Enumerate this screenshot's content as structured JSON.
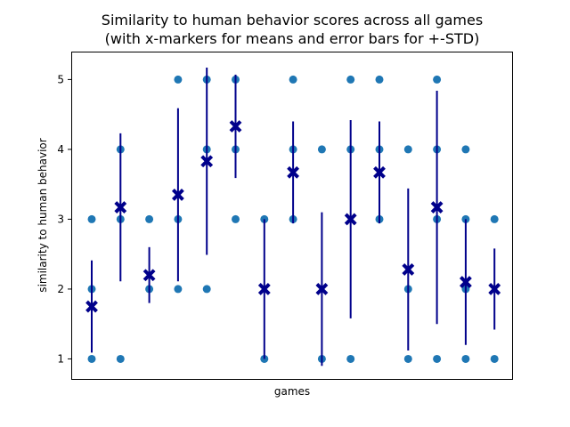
{
  "chart_data": {
    "type": "scatter",
    "title_line1": "Similarity to human behavior scores across all games",
    "title_line2": "(with x-markers for means and error bars for +-STD)",
    "xlabel": "games",
    "ylabel": "similarity to human behavior",
    "ylim": [
      0.7,
      5.4
    ],
    "yticks": [
      1,
      2,
      3,
      4,
      5
    ],
    "grid": false,
    "point_color": "#1f77b4",
    "mean_color": "#00008b",
    "games": [
      {
        "points": [
          1,
          2,
          3
        ],
        "mean": 1.75,
        "std": 0.66
      },
      {
        "points": [
          1,
          3,
          4
        ],
        "mean": 3.17,
        "std": 1.06
      },
      {
        "points": [
          2,
          3
        ],
        "mean": 2.2,
        "std": 0.4
      },
      {
        "points": [
          2,
          3,
          5
        ],
        "mean": 3.35,
        "std": 1.24
      },
      {
        "points": [
          2,
          4,
          5
        ],
        "mean": 3.83,
        "std": 1.34
      },
      {
        "points": [
          3,
          4,
          5
        ],
        "mean": 4.33,
        "std": 0.74
      },
      {
        "points": [
          1,
          3
        ],
        "mean": 2.0,
        "std": 1.0
      },
      {
        "points": [
          3,
          4,
          5
        ],
        "mean": 3.67,
        "std": 0.73
      },
      {
        "points": [
          1,
          4
        ],
        "mean": 2.0,
        "std": 1.1
      },
      {
        "points": [
          1,
          4,
          5
        ],
        "mean": 3.0,
        "std": 1.42
      },
      {
        "points": [
          3,
          4,
          5
        ],
        "mean": 3.67,
        "std": 0.73
      },
      {
        "points": [
          1,
          2,
          4
        ],
        "mean": 2.28,
        "std": 1.16
      },
      {
        "points": [
          1,
          3,
          4,
          5
        ],
        "mean": 3.17,
        "std": 1.67
      },
      {
        "points": [
          1,
          2,
          3,
          4
        ],
        "mean": 2.1,
        "std": 0.9
      },
      {
        "points": [
          1,
          3
        ],
        "mean": 2.0,
        "std": 0.58
      }
    ]
  }
}
